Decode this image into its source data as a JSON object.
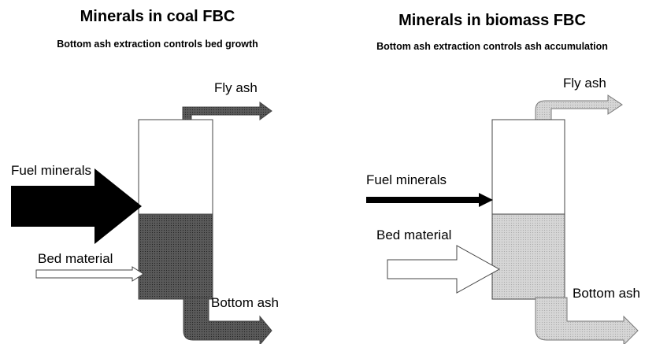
{
  "panels": [
    {
      "title": "Minerals in coal FBC",
      "subtitle": "Bottom ash extraction controls bed growth",
      "labels": {
        "fly_ash": "Fly ash",
        "fuel_minerals": "Fuel minerals",
        "bed_material": "Bed material",
        "bottom_ash": "Bottom ash"
      }
    },
    {
      "title": "Minerals in biomass FBC",
      "subtitle": "Bottom ash extraction controls ash accumulation",
      "labels": {
        "fly_ash": "Fly ash",
        "fuel_minerals": "Fuel minerals",
        "bed_material": "Bed material",
        "bottom_ash": "Bottom ash"
      }
    }
  ]
}
